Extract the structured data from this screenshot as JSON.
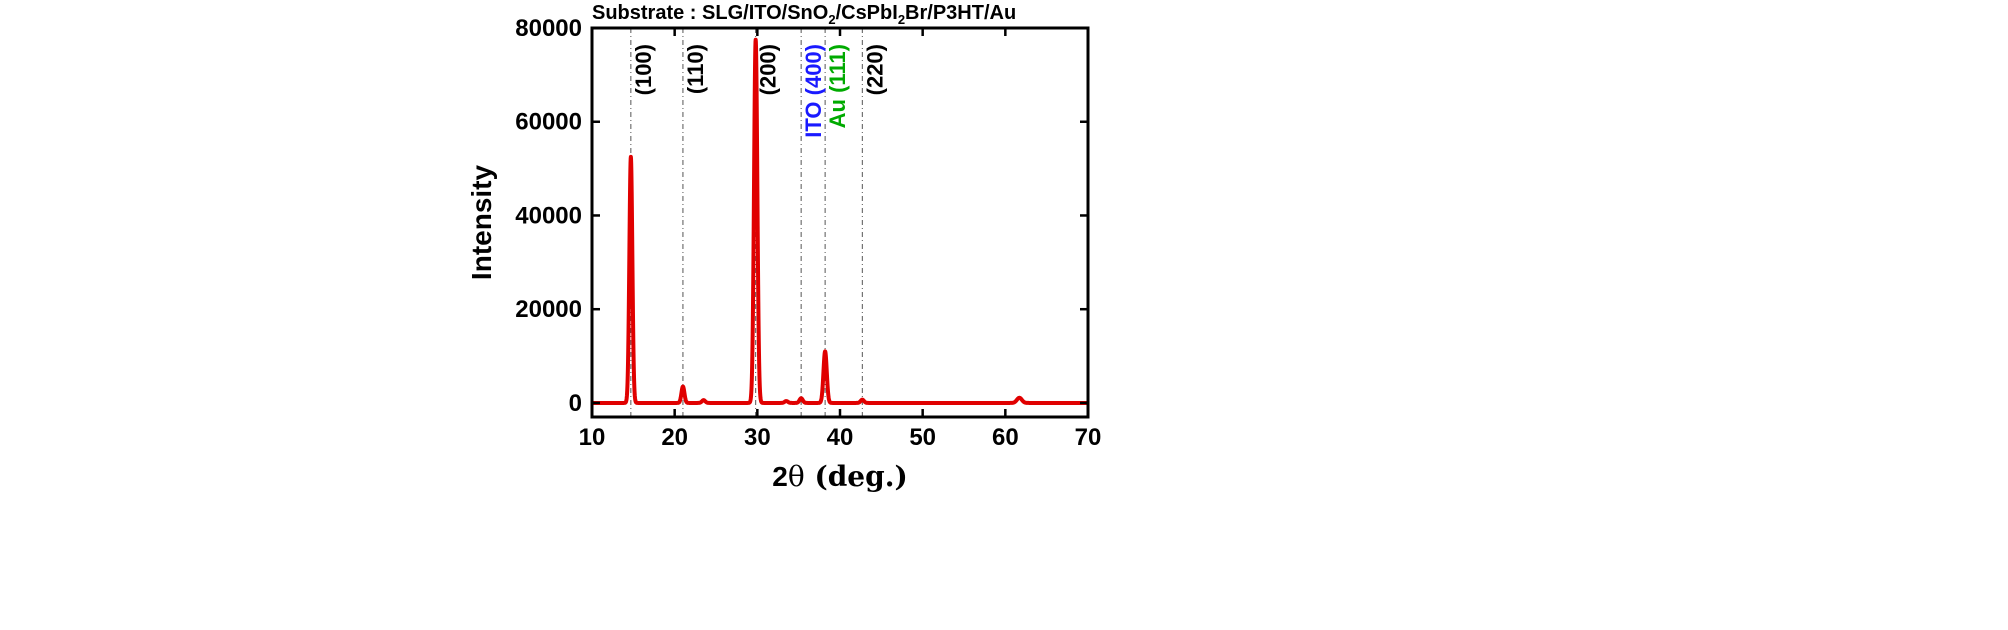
{
  "chart_data": {
    "type": "line",
    "title_parts": [
      {
        "text": "Substrate : SLG/ITO/SnO",
        "sub": false
      },
      {
        "text": "2",
        "sub": true
      },
      {
        "text": "/CsPbI",
        "sub": false
      },
      {
        "text": "2",
        "sub": true
      },
      {
        "text": "Br/P3HT/Au",
        "sub": false
      }
    ],
    "xlabel_prefix": "2",
    "xlabel_theta": "θ",
    "xlabel_suffix": " (deg.)",
    "ylabel": "Intensity",
    "xlim": [
      10,
      70
    ],
    "ylim": [
      -3000,
      80000
    ],
    "xticks": [
      10,
      20,
      30,
      40,
      50,
      60,
      70
    ],
    "yticks": [
      0,
      20000,
      40000,
      60000,
      80000
    ],
    "line_color": "#e00000",
    "baseline": 0,
    "peaks": [
      {
        "x": 14.7,
        "y": 52500,
        "w": 0.18
      },
      {
        "x": 21.0,
        "y": 3500,
        "w": 0.18
      },
      {
        "x": 23.5,
        "y": 600,
        "w": 0.2
      },
      {
        "x": 29.8,
        "y": 77500,
        "w": 0.2
      },
      {
        "x": 33.5,
        "y": 400,
        "w": 0.2
      },
      {
        "x": 35.3,
        "y": 1000,
        "w": 0.2
      },
      {
        "x": 38.2,
        "y": 11000,
        "w": 0.2
      },
      {
        "x": 42.7,
        "y": 700,
        "w": 0.2
      },
      {
        "x": 61.7,
        "y": 1100,
        "w": 0.3
      }
    ],
    "reference_lines": [
      {
        "x": 14.7,
        "label": "(100)",
        "color": "#000000"
      },
      {
        "x": 21.0,
        "label": "(110)",
        "color": "#000000"
      },
      {
        "x": 29.8,
        "label": "(200)",
        "color": "#000000"
      },
      {
        "x": 35.3,
        "label": "ITO (400)",
        "color": "#1a1aff"
      },
      {
        "x": 38.2,
        "label": "Au (111)",
        "color": "#00aa00"
      },
      {
        "x": 42.7,
        "label": "(220)",
        "color": "#000000"
      }
    ]
  }
}
